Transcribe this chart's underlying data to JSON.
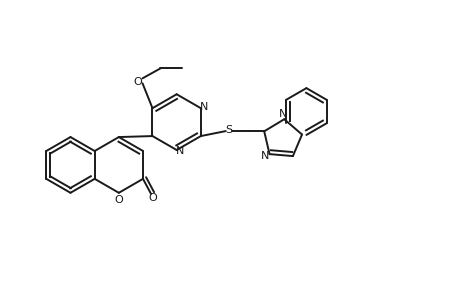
{
  "bg_color": "#ffffff",
  "line_color": "#1a1a1a",
  "line_width": 1.4,
  "figsize": [
    4.6,
    3.0
  ],
  "dpi": 100,
  "xlim": [
    0,
    46
  ],
  "ylim": [
    0,
    30
  ]
}
